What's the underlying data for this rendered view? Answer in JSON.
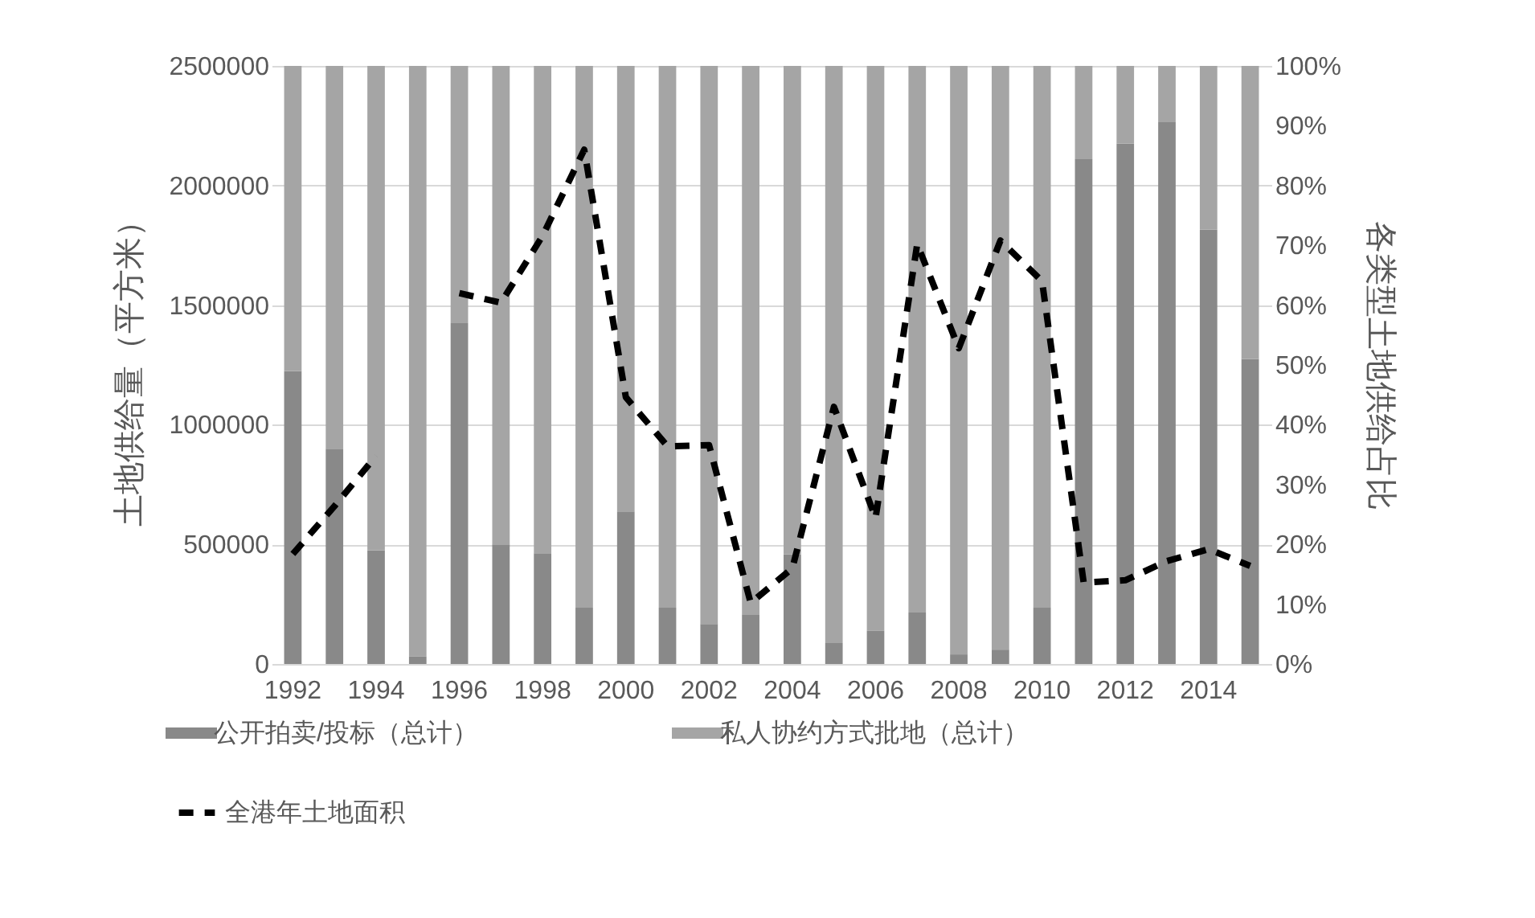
{
  "chart_data": {
    "type": "bar",
    "categories": [
      "1992",
      null,
      "1994",
      null,
      "1996",
      null,
      "1998",
      null,
      "2000",
      null,
      "2002",
      null,
      "2004",
      null,
      "2006",
      null,
      "2008",
      null,
      "2010",
      null,
      "2012",
      null,
      "2014",
      null
    ],
    "series": [
      {
        "name": "公开拍卖/投标（总计）",
        "color": "#898989",
        "axis": "y2",
        "values": [
          49,
          36,
          19,
          1.3,
          57,
          20,
          18.5,
          9.4,
          25.5,
          9.4,
          6.7,
          8.3,
          18.3,
          3.5,
          5.6,
          8.6,
          1.6,
          2.4,
          9.4,
          84.4,
          87,
          90.6,
          72.6,
          51
        ]
      },
      {
        "name": "私人协约方式批地（总计）",
        "color": "#a5a5a5",
        "axis": "y2",
        "values": [
          51,
          64,
          81,
          98.7,
          43,
          80,
          81.5,
          90.6,
          74.5,
          90.6,
          93.3,
          91.7,
          81.7,
          96.5,
          94.4,
          91.4,
          98.4,
          97.6,
          90.6,
          15.6,
          13,
          9.4,
          27.4,
          49
        ]
      },
      {
        "name": "全港年土地面积",
        "type": "line",
        "color": "#000000",
        "line_style": "dashed",
        "values": [
          460000,
          660000,
          870000,
          null,
          1550000,
          1510000,
          1790000,
          2150000,
          1115000,
          910000,
          915000,
          255000,
          400000,
          1075000,
          610000,
          1755000,
          1320000,
          1770000,
          1600000,
          340000,
          350000,
          430000,
          480000,
          410000
        ]
      }
    ],
    "ylabel": "土地供给量（平方米）",
    "y2label": "各类型土地供给占比",
    "ylim": [
      0,
      2500000
    ],
    "yticks": [
      0,
      500000,
      1000000,
      1500000,
      2000000,
      2500000
    ],
    "y2lim": [
      0,
      100
    ],
    "y2ticks": [
      {
        "value": 0,
        "label": "0%"
      },
      {
        "value": 10,
        "label": "10%"
      },
      {
        "value": 20,
        "label": "20%"
      },
      {
        "value": 30,
        "label": "30%"
      },
      {
        "value": 40,
        "label": "40%"
      },
      {
        "value": 50,
        "label": "50%"
      },
      {
        "value": 60,
        "label": "60%"
      },
      {
        "value": 70,
        "label": "70%"
      },
      {
        "value": 80,
        "label": "80%"
      },
      {
        "value": 90,
        "label": "90%"
      },
      {
        "value": 100,
        "label": "100%"
      }
    ],
    "stacked": true,
    "grid": "y",
    "legend": "bottom"
  }
}
